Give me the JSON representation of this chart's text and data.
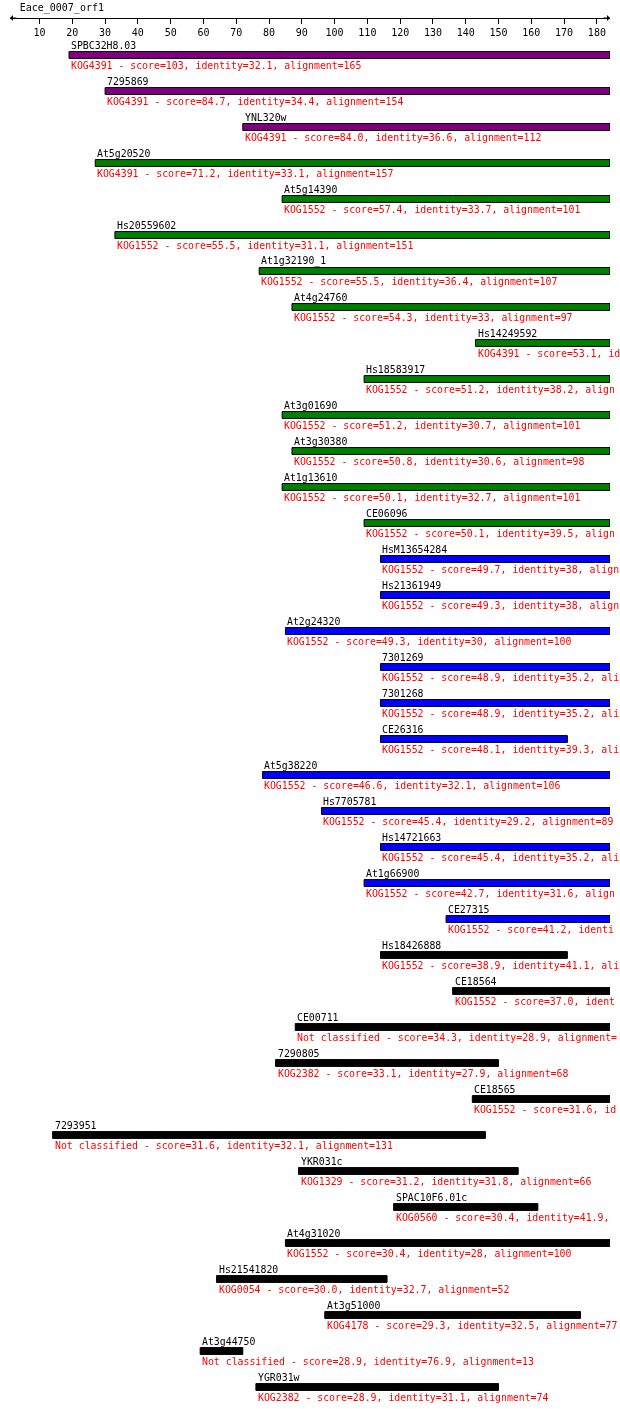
{
  "chart_data": {
    "type": "bar",
    "orientation": "horizontal",
    "title": "Eace_0007_orf1",
    "categories": [
      "SPBC32H8.03",
      "7295869",
      "YNL320w",
      "At5g20520",
      "At5g14390",
      "Hs20559602",
      "At1g32190_1",
      "At4g24760",
      "Hs14249592",
      "Hs18583917",
      "At3g01690",
      "At3g30380",
      "At1g13610",
      "CE06096",
      "HsM13654284",
      "Hs21361949",
      "At2g24320",
      "7301269",
      "7301268",
      "CE26316",
      "At5g38220",
      "Hs7705781",
      "Hs14721663",
      "At1g66900",
      "CE27315",
      "Hs18426888",
      "CE18564",
      "CE00711",
      "7290805",
      "CE18565",
      "7293951",
      "YKR031c",
      "SPAC10F6.01c",
      "At4g31020",
      "Hs21541820",
      "At3g51000",
      "At3g44750",
      "YGR031w"
    ],
    "base": [
      19,
      30,
      72,
      27,
      84,
      33,
      77,
      87,
      143,
      109,
      84,
      87,
      84,
      109,
      114,
      114,
      85,
      114,
      114,
      114,
      78,
      96,
      114,
      109,
      134,
      114,
      136,
      88,
      82,
      142,
      14,
      89,
      118,
      85,
      64,
      97,
      59,
      76
    ],
    "values": [
      165,
      154,
      112,
      157,
      100,
      151,
      107,
      97,
      41,
      75,
      100,
      97,
      100,
      75,
      70,
      70,
      99,
      70,
      70,
      57,
      106,
      88,
      70,
      75,
      50,
      57,
      48,
      96,
      68,
      42,
      132,
      67,
      44,
      99,
      52,
      78,
      13,
      74
    ],
    "colors": [
      "#800080",
      "#800080",
      "#800080",
      "#008000",
      "#008000",
      "#008000",
      "#008000",
      "#008000",
      "#008000",
      "#008000",
      "#008000",
      "#008000",
      "#008000",
      "#008000",
      "#0000ff",
      "#0000ff",
      "#0000ff",
      "#0000ff",
      "#0000ff",
      "#0000ff",
      "#0000ff",
      "#0000ff",
      "#0000ff",
      "#0000ff",
      "#0000ff",
      "#000000",
      "#000000",
      "#000000",
      "#000000",
      "#000000",
      "#000000",
      "#000000",
      "#000000",
      "#000000",
      "#000000",
      "#000000",
      "#000000",
      "#000000"
    ],
    "xlim": [
      1,
      184
    ],
    "xticks": [
      10,
      20,
      30,
      40,
      50,
      60,
      70,
      80,
      90,
      100,
      110,
      120,
      130,
      140,
      150,
      160,
      170,
      180
    ],
    "tick_labels": "x",
    "annotations": [
      "KOG4391 - score=103, identity=32.1, alignment=165",
      "KOG4391 - score=84.7, identity=34.4, alignment=154",
      "KOG4391 - score=84.0, identity=36.6, alignment=112",
      "KOG4391 - score=71.2, identity=33.1, alignment=157",
      "KOG1552 - score=57.4, identity=33.7, alignment=101",
      "KOG1552 - score=55.5, identity=31.1, alignment=151",
      "KOG1552 - score=55.5, identity=36.4, alignment=107",
      "KOG1552 - score=54.3, identity=33, alignment=97",
      "KOG4391 - score=53.1, id",
      "KOG1552 - score=51.2, identity=38.2, align",
      "KOG1552 - score=51.2, identity=30.7, alignment=101",
      "KOG1552 - score=50.8, identity=30.6, alignment=98",
      "KOG1552 - score=50.1, identity=32.7, alignment=101",
      "KOG1552 - score=50.1, identity=39.5, align",
      "KOG1552 - score=49.7, identity=38, align",
      "KOG1552 - score=49.3, identity=38, align",
      "KOG1552 - score=49.3, identity=30, alignment=100",
      "KOG1552 - score=48.9, identity=35.2, ali",
      "KOG1552 - score=48.9, identity=35.2, ali",
      "KOG1552 - score=48.1, identity=39.3, ali",
      "KOG1552 - score=46.6, identity=32.1, alignment=106",
      "KOG1552 - score=45.4, identity=29.2, alignment=89",
      "KOG1552 - score=45.4, identity=35.2, ali",
      "KOG1552 - score=42.7, identity=31.6, align",
      "KOG1552 - score=41.2, identi",
      "KOG1552 - score=38.9, identity=41.1, ali",
      "KOG1552 - score=37.0, ident",
      "Not classified - score=34.3, identity=28.9, alignment=",
      "KOG2382 - score=33.1, identity=27.9, alignment=68",
      "KOG1552 - score=31.6, id",
      "Not classified - score=31.6, identity=32.1, alignment=131",
      "KOG1329 - score=31.2, identity=31.8, alignment=66",
      "KOG0560 - score=30.4, identity=41.9,",
      "KOG1552 - score=30.4, identity=28, alignment=100",
      "KOG0054 - score=30.0, identity=32.7, alignment=52",
      "KOG4178 - score=29.3, identity=32.5, alignment=77",
      "Not classified - score=28.9, identity=76.9, alignment=13",
      "KOG2382 - score=28.9, identity=31.1, alignment=74"
    ]
  }
}
